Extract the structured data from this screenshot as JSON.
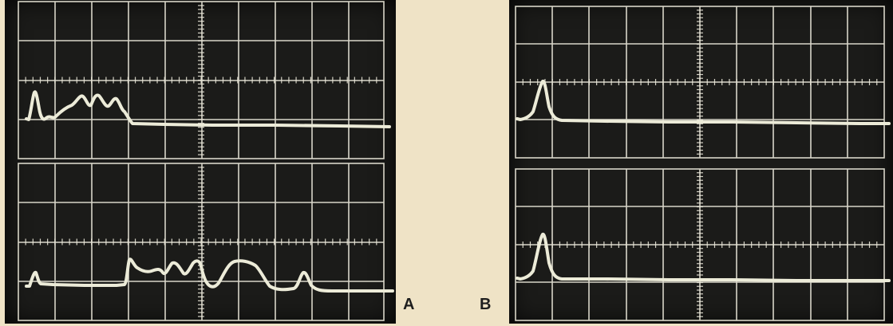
{
  "photo": {
    "background_color": "#efe3c6",
    "screen_color": "#1b1b19",
    "grid_color": "#e9e6d8",
    "trace_color": "#ecebd8",
    "panels": [
      {
        "id": "A",
        "label": "A",
        "divisions": {
          "x": 10,
          "y": 8
        },
        "traces": [
          {
            "name": "upper-trace",
            "shape": "pulse train (5 humps)"
          },
          {
            "name": "lower-trace",
            "shape": "pulse train (many humps)"
          }
        ]
      },
      {
        "id": "B",
        "label": "B",
        "divisions": {
          "x": 10,
          "y": 8
        },
        "traces": [
          {
            "name": "upper-trace",
            "shape": "single spike"
          },
          {
            "name": "lower-trace",
            "shape": "single spike"
          }
        ]
      }
    ]
  }
}
